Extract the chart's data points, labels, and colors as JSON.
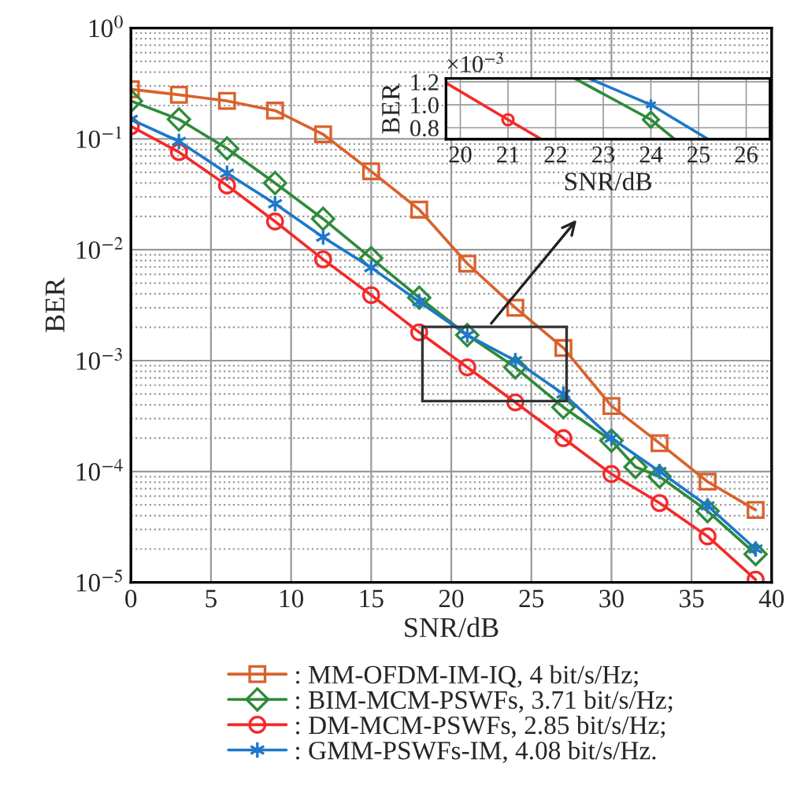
{
  "chart_data": [
    {
      "type": "line",
      "xlabel": "SNR/dB",
      "ylabel": "BER",
      "log": "y",
      "grid": true,
      "legend": "bottom",
      "xlim": [
        0,
        40
      ],
      "xticks": [
        0,
        5,
        10,
        15,
        20,
        25,
        30,
        35,
        40
      ],
      "ylim": [
        1e-05,
        1
      ],
      "yticks": [
        {
          "value": 1e-05,
          "label": "10$^{−5}$"
        },
        {
          "value": 0.0001,
          "label": "10$^{−4}$"
        },
        {
          "value": 0.001,
          "label": "10$^{−3}$"
        },
        {
          "value": 0.01,
          "label": "10$^{−2}$"
        },
        {
          "value": 0.1,
          "label": "10$^{−1}$"
        },
        {
          "value": 1,
          "label": "10$^{0}$"
        }
      ],
      "series": [
        {
          "name": ": MM-OFDM-IM-IQ, 4 bit/s/Hz;",
          "color": "#d9622b",
          "marker": "square",
          "x": [
            0,
            3,
            6,
            9,
            12,
            15,
            18,
            21,
            24,
            27,
            30,
            33,
            36,
            39
          ],
          "values": [
            0.28,
            0.25,
            0.22,
            0.18,
            0.11,
            0.051,
            0.023,
            0.0075,
            0.003,
            0.0013,
            0.00039,
            0.00018,
            8.1e-05,
            4.5e-05
          ]
        },
        {
          "name": ": BIM-MCM-PSWFs, 3.71 bit/s/Hz;",
          "color": "#2e8b3a",
          "marker": "diamond",
          "x": [
            0,
            3,
            6,
            9,
            12,
            15,
            18,
            21,
            24,
            27,
            30,
            31.5,
            33,
            36,
            39
          ],
          "values": [
            0.22,
            0.15,
            0.082,
            0.04,
            0.019,
            0.0084,
            0.0037,
            0.0017,
            0.00087,
            0.00038,
            0.00019,
            0.00011,
            9e-05,
            4.4e-05,
            1.8e-05
          ]
        },
        {
          "name": ": DM-MCM-PSWFs, 2.85 bit/s/Hz;",
          "color": "#f42a2a",
          "marker": "circle",
          "x": [
            0,
            3,
            6,
            9,
            12,
            15,
            18,
            21,
            24,
            27,
            30,
            33,
            36,
            39
          ],
          "values": [
            0.13,
            0.076,
            0.038,
            0.018,
            0.0082,
            0.0039,
            0.0018,
            0.00087,
            0.00042,
            0.0002,
            9.5e-05,
            5.2e-05,
            2.6e-05,
            1.06e-05
          ]
        },
        {
          "name": ": GMM-PSWFs-IM, 4.08 bit/s/Hz.",
          "color": "#1f78c8",
          "marker": "cross",
          "x": [
            0,
            3,
            6,
            9,
            12,
            15,
            18,
            21,
            24,
            27,
            30,
            33,
            36,
            39
          ],
          "values": [
            0.15,
            0.095,
            0.049,
            0.026,
            0.013,
            0.0069,
            0.0034,
            0.0017,
            0.001,
            0.0005,
            0.0002,
            0.0001,
            4.9e-05,
            2e-05
          ]
        }
      ]
    },
    {
      "type": "line",
      "xlabel": "SNR/dB",
      "ylabel": "BER",
      "grid": true,
      "annotations": [
        "×10$^{−3}$"
      ],
      "xlim": [
        19.7,
        26.5
      ],
      "xticks": [
        20,
        21,
        22,
        23,
        24,
        25,
        26
      ],
      "ylim": [
        0.7,
        1.23
      ],
      "yticks": [
        0.8,
        {
          "value": 1,
          "label": "1.0"
        },
        1.2
      ],
      "series": [
        {
          "color": "#2e8b3a",
          "marker": "none",
          "x": [
            22.4,
            24,
            24.5
          ],
          "values": [
            1.23,
            0.87,
            0.7
          ]
        },
        {
          "color": "#f42a2a",
          "marker": "none",
          "x": [
            19.7,
            21,
            21.7
          ],
          "values": [
            1.19,
            0.87,
            0.7
          ]
        },
        {
          "color": "#1f78c8",
          "marker": "none",
          "x": [
            22.7,
            24,
            25.2
          ],
          "values": [
            1.23,
            1.0,
            0.7
          ]
        },
        {
          "type": "scatter",
          "color": "#2e8b3a",
          "marker": "diamond",
          "x": [
            24
          ],
          "values": [
            0.87
          ]
        },
        {
          "type": "scatter",
          "color": "#f42a2a",
          "marker": "circle",
          "x": [
            21
          ],
          "values": [
            0.87
          ]
        },
        {
          "type": "scatter",
          "color": "#1f78c8",
          "marker": "cross",
          "x": [
            24
          ],
          "values": [
            1.0
          ]
        }
      ]
    }
  ]
}
